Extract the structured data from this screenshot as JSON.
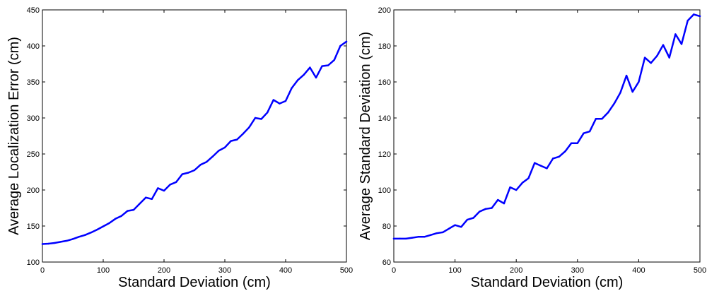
{
  "chart_data": [
    {
      "type": "line",
      "xlabel": "Standard Deviation (cm)",
      "ylabel": "Average Localization Error (cm)",
      "xlim": [
        0,
        500
      ],
      "ylim": [
        100,
        450
      ],
      "xticks": [
        0,
        100,
        200,
        300,
        400,
        500
      ],
      "yticks": [
        100,
        150,
        200,
        250,
        300,
        350,
        400,
        450
      ],
      "grid": false,
      "line_color": "#0000ff",
      "series": [
        {
          "x": [
            0,
            10,
            20,
            30,
            40,
            50,
            60,
            70,
            80,
            90,
            100,
            110,
            120,
            130,
            140,
            150,
            160,
            170,
            180,
            190,
            200,
            210,
            220,
            230,
            240,
            250,
            260,
            270,
            280,
            290,
            300,
            310,
            320,
            330,
            340,
            350,
            360,
            370,
            380,
            390,
            400,
            410,
            420,
            430,
            440,
            450,
            460,
            470,
            480,
            490,
            500
          ],
          "values": [
            125,
            125.5,
            126.5,
            128,
            129.5,
            132,
            135,
            137.5,
            141,
            145,
            149.5,
            154,
            160,
            164,
            171,
            172.5,
            181,
            189.5,
            187.5,
            202.5,
            199,
            207.5,
            211,
            222,
            224,
            227.5,
            235,
            239,
            246.5,
            254.5,
            259,
            268,
            270,
            278,
            287,
            300,
            298.5,
            307.5,
            325,
            320,
            323.5,
            341.5,
            352.5,
            360,
            370,
            356,
            372,
            373,
            380.5,
            400,
            406
          ]
        }
      ]
    },
    {
      "type": "line",
      "xlabel": "Standard Deviation (cm)",
      "ylabel": "Average Standard Deviation (cm)",
      "xlim": [
        0,
        500
      ],
      "ylim": [
        60,
        200
      ],
      "xticks": [
        0,
        100,
        200,
        300,
        400,
        500
      ],
      "yticks": [
        60,
        80,
        100,
        120,
        140,
        160,
        180,
        200
      ],
      "grid": false,
      "line_color": "#0000ff",
      "series": [
        {
          "x": [
            0,
            10,
            20,
            30,
            40,
            50,
            60,
            70,
            80,
            90,
            100,
            110,
            120,
            130,
            140,
            150,
            160,
            170,
            180,
            190,
            200,
            210,
            220,
            230,
            240,
            250,
            260,
            270,
            280,
            290,
            300,
            310,
            320,
            330,
            340,
            350,
            360,
            370,
            380,
            390,
            400,
            410,
            420,
            430,
            440,
            450,
            460,
            470,
            480,
            490,
            500
          ],
          "values": [
            73,
            73,
            73,
            73.5,
            74,
            74,
            75,
            76,
            76.5,
            78.5,
            80.5,
            79.5,
            83.5,
            84.5,
            88,
            89.5,
            90,
            94.5,
            92.5,
            101.5,
            100,
            104,
            106.5,
            115,
            113.5,
            112,
            117.5,
            118.5,
            121.5,
            126,
            126,
            131.5,
            132.5,
            139.5,
            139.5,
            143,
            148,
            154,
            163.5,
            154.5,
            160,
            173.5,
            170.5,
            174.5,
            180.5,
            173.5,
            186.5,
            181,
            194,
            197.5,
            196.5
          ]
        }
      ]
    }
  ]
}
